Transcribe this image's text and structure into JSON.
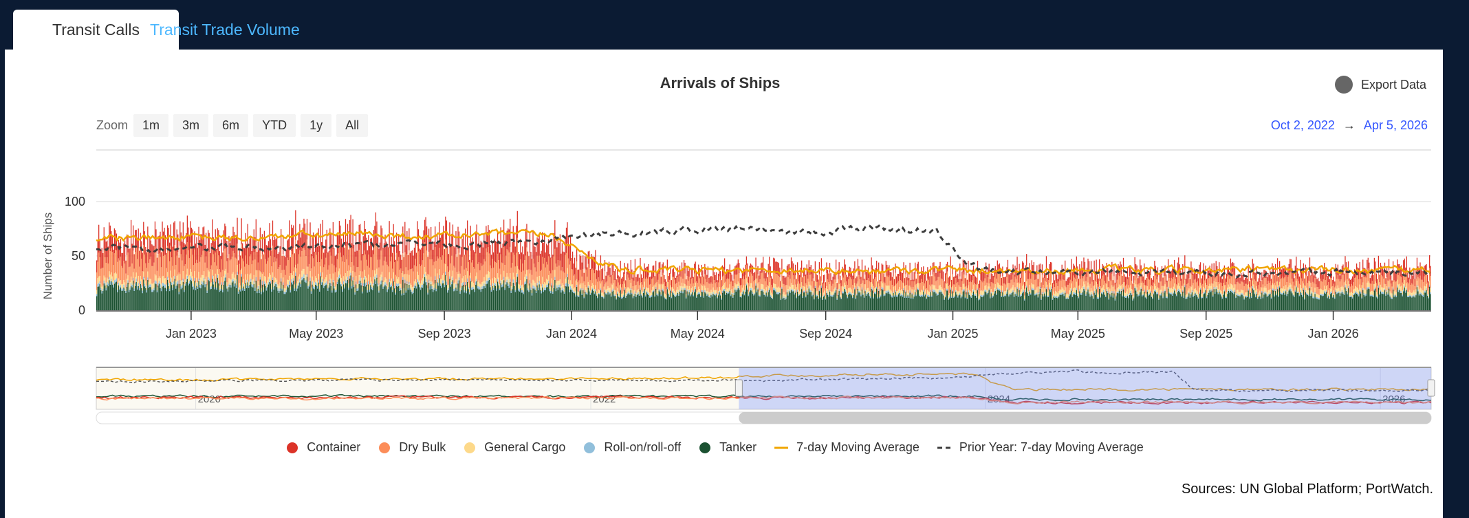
{
  "tabs": [
    {
      "label": "Transit Calls",
      "active": true
    },
    {
      "label": "Transit Trade Volume",
      "active": false
    }
  ],
  "export_label": "Export Data",
  "zoom": {
    "label": "Zoom",
    "buttons": [
      "1m",
      "3m",
      "6m",
      "YTD",
      "1y",
      "All"
    ]
  },
  "range": {
    "from": "Oct 2, 2022",
    "arrow": "→",
    "to": "Apr 5, 2026"
  },
  "sources": "Sources: UN Global Platform; PortWatch.",
  "chart_data": {
    "type": "bar",
    "stacked": true,
    "title": "Arrivals of Ships",
    "ylabel": "Number of Ships",
    "ylim": [
      0,
      100
    ],
    "y_ticks": [
      "0",
      "50",
      "100"
    ],
    "x_range": [
      "2022-10-02",
      "2026-04-05"
    ],
    "x_ticks": [
      {
        "date": "2023-01-01",
        "label": "Jan 2023"
      },
      {
        "date": "2023-05-01",
        "label": "May 2023"
      },
      {
        "date": "2023-09-01",
        "label": "Sep 2023"
      },
      {
        "date": "2024-01-01",
        "label": "Jan 2024"
      },
      {
        "date": "2024-05-01",
        "label": "May 2024"
      },
      {
        "date": "2024-09-01",
        "label": "Sep 2024"
      },
      {
        "date": "2025-01-01",
        "label": "Jan 2025"
      },
      {
        "date": "2025-05-01",
        "label": "May 2025"
      },
      {
        "date": "2025-09-01",
        "label": "Sep 2025"
      },
      {
        "date": "2026-01-01",
        "label": "Jan 2026"
      }
    ],
    "grid": true,
    "legend_position": "bottom",
    "resolution": "monthly average of daily values, Oct 2022 – Apr 2026",
    "series": [
      {
        "name": "Container",
        "color": "#dc3328",
        "symbol": "circle",
        "values": [
          18,
          18,
          19,
          19,
          18,
          19,
          20,
          19,
          20,
          20,
          19,
          19,
          20,
          20,
          20,
          13,
          9,
          9,
          8,
          8,
          8,
          9,
          9,
          8,
          8,
          8,
          9,
          9,
          8,
          8,
          8,
          9,
          9,
          8,
          9,
          8,
          8,
          9,
          9,
          8,
          8,
          9,
          9
        ]
      },
      {
        "name": "Dry Bulk",
        "color": "#fc8d59",
        "symbol": "circle",
        "values": [
          19,
          19,
          19,
          18,
          19,
          19,
          19,
          20,
          19,
          19,
          19,
          19,
          19,
          19,
          19,
          13,
          9,
          9,
          9,
          9,
          9,
          10,
          9,
          9,
          9,
          9,
          9,
          9,
          9,
          10,
          9,
          9,
          9,
          9,
          9,
          9,
          9,
          9,
          9,
          9,
          9,
          9,
          9
        ]
      },
      {
        "name": "General Cargo",
        "color": "#fdd98a",
        "symbol": "circle",
        "values": [
          5,
          5,
          5,
          5,
          5,
          5,
          5,
          5,
          5,
          5,
          5,
          5,
          5,
          5,
          5,
          4,
          4,
          4,
          4,
          4,
          4,
          4,
          4,
          4,
          4,
          4,
          4,
          4,
          4,
          4,
          4,
          4,
          4,
          4,
          4,
          4,
          4,
          4,
          4,
          4,
          4,
          4,
          4
        ]
      },
      {
        "name": "Roll-on/roll-off",
        "color": "#91bfdb",
        "symbol": "circle",
        "values": [
          2.5,
          2.5,
          2.5,
          2.5,
          2.5,
          2.5,
          2.5,
          2.5,
          2.5,
          2.5,
          2.5,
          2.5,
          2.5,
          2.5,
          2.5,
          1.5,
          1.5,
          1.5,
          1.5,
          1.5,
          1.5,
          1.5,
          1.5,
          1.5,
          1.5,
          1.5,
          1.5,
          1.5,
          1.5,
          1.5,
          1.5,
          1.5,
          1.5,
          1.5,
          1.5,
          1.5,
          1.5,
          1.5,
          1.5,
          1.5,
          1.5,
          1.5,
          1.5
        ]
      },
      {
        "name": "Tanker",
        "color": "#1b5131",
        "symbol": "circle",
        "values": [
          22,
          22,
          22,
          22,
          23,
          22,
          22,
          23,
          22,
          22,
          22,
          23,
          22,
          22,
          22,
          17,
          15,
          15,
          15,
          15,
          16,
          15,
          15,
          15,
          15,
          15,
          15,
          15,
          16,
          15,
          15,
          15,
          15,
          16,
          15,
          15,
          15,
          16,
          15,
          15,
          15,
          15,
          16
        ]
      }
    ],
    "lines": [
      {
        "name": "7-day Moving Average",
        "color": "#f0a500",
        "dashed": false,
        "values": [
          66,
          66,
          67,
          67,
          66,
          67,
          69,
          69,
          70,
          69,
          68,
          69,
          70,
          70,
          69,
          50,
          38,
          37,
          36,
          37,
          37,
          37,
          37,
          36,
          36,
          37,
          37,
          37,
          37,
          37,
          36,
          38,
          37,
          36,
          37,
          37,
          37,
          37,
          37,
          37,
          37,
          37,
          38
        ]
      },
      {
        "name": "Prior Year: 7-day Moving Average",
        "color": "#3d3d3d",
        "dashed": true,
        "values": [
          57,
          56,
          56,
          57,
          58,
          57,
          58,
          59,
          60,
          62,
          62,
          60,
          62,
          64,
          66,
          70,
          71,
          72,
          74,
          75,
          76,
          73,
          72,
          74,
          76,
          74,
          74,
          40,
          34,
          35,
          34,
          35,
          34,
          33,
          35,
          34,
          35,
          34,
          34,
          35,
          34,
          34,
          35
        ]
      }
    ],
    "navigator": {
      "labels": [
        "2020",
        "2022",
        "2024",
        "2026"
      ],
      "x_range": [
        "2019-07-01",
        "2026-04-05"
      ],
      "selected_from": "2022-10-02",
      "selected_to": "2026-04-05",
      "history_dates": [
        "2019-07",
        "2020-01",
        "2020-07",
        "2021-01",
        "2021-07",
        "2022-01",
        "2022-07"
      ],
      "history": {
        "7-day Moving Average": [
          58,
          57,
          59,
          60,
          59,
          60,
          62
        ],
        "Prior Year: 7-day Moving Average": [
          52,
          55,
          56,
          57,
          58,
          56,
          57
        ],
        "Tanker": [
          22,
          22,
          23,
          22,
          22,
          21,
          22
        ],
        "Container": [
          19,
          20,
          19,
          20,
          19,
          20,
          19
        ],
        "Dry Bulk": [
          17,
          18,
          17,
          18,
          18,
          19,
          18
        ]
      }
    }
  }
}
